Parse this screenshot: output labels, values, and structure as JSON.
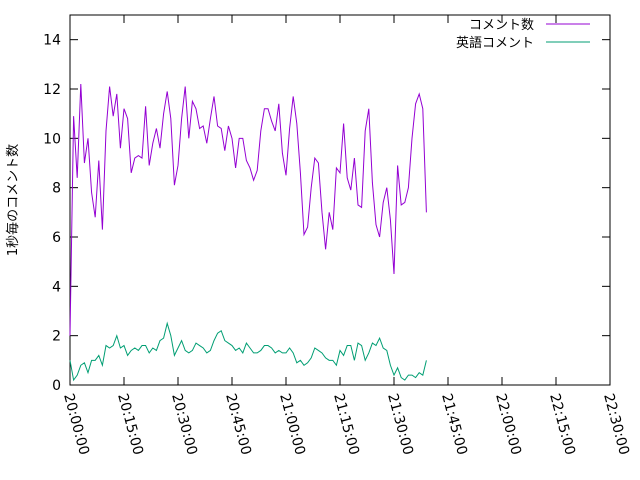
{
  "chart_data": {
    "type": "line",
    "title": "",
    "xlabel": "",
    "ylabel": "1秒毎のコメント数",
    "xlim": [
      "20:00:00",
      "22:30:00"
    ],
    "ylim": [
      0,
      15
    ],
    "grid": false,
    "legend_position": "top-right",
    "x_ticks": [
      "20:00:00",
      "20:15:00",
      "20:30:00",
      "20:45:00",
      "21:00:00",
      "21:15:00",
      "21:30:00",
      "21:45:00",
      "22:00:00",
      "22:15:00",
      "22:30:00"
    ],
    "y_ticks": [
      "0",
      "2",
      "4",
      "6",
      "8",
      "10",
      "12",
      "14"
    ],
    "x_start": "20:00:00",
    "x_step_seconds": 60,
    "series": [
      {
        "name": "コメント数",
        "color": "#9400d3",
        "values": [
          2.0,
          10.9,
          8.4,
          12.2,
          9.0,
          10.0,
          7.8,
          6.8,
          9.1,
          6.3,
          10.3,
          12.1,
          10.9,
          11.8,
          9.6,
          11.2,
          10.8,
          8.6,
          9.2,
          9.3,
          9.2,
          11.3,
          8.9,
          9.8,
          10.4,
          9.6,
          11.0,
          11.9,
          10.8,
          8.1,
          8.9,
          10.8,
          12.1,
          10.0,
          11.5,
          11.2,
          10.4,
          10.5,
          9.8,
          10.8,
          11.7,
          10.5,
          10.4,
          9.5,
          10.5,
          10.0,
          8.8,
          10.0,
          10.0,
          9.1,
          8.8,
          8.3,
          8.7,
          10.3,
          11.2,
          11.2,
          10.7,
          10.3,
          11.4,
          9.4,
          8.5,
          10.4,
          11.7,
          10.6,
          8.6,
          6.1,
          6.4,
          8.0,
          9.2,
          9.0,
          7.0,
          5.5,
          7.0,
          6.3,
          8.8,
          8.6,
          10.6,
          8.4,
          7.9,
          9.2,
          7.3,
          7.2,
          10.3,
          11.2,
          8.2,
          6.5,
          6.0,
          7.4,
          8.0,
          6.7,
          4.5,
          8.9,
          7.3,
          7.4,
          8.0,
          10.0,
          11.4,
          11.8,
          11.2,
          7.0
        ]
      },
      {
        "name": "英語コメント",
        "color": "#009e73",
        "values": [
          1.0,
          0.2,
          0.4,
          0.8,
          0.9,
          0.5,
          1.0,
          1.0,
          1.2,
          0.8,
          1.6,
          1.5,
          1.6,
          2.0,
          1.5,
          1.6,
          1.2,
          1.4,
          1.5,
          1.4,
          1.6,
          1.6,
          1.3,
          1.5,
          1.4,
          1.8,
          1.9,
          2.5,
          2.0,
          1.2,
          1.5,
          1.8,
          1.4,
          1.3,
          1.4,
          1.7,
          1.6,
          1.5,
          1.3,
          1.4,
          1.8,
          2.1,
          2.2,
          1.8,
          1.7,
          1.6,
          1.4,
          1.5,
          1.3,
          1.7,
          1.5,
          1.3,
          1.3,
          1.4,
          1.6,
          1.6,
          1.5,
          1.3,
          1.4,
          1.3,
          1.3,
          1.5,
          1.3,
          0.9,
          1.0,
          0.8,
          0.9,
          1.1,
          1.5,
          1.4,
          1.3,
          1.1,
          1.0,
          1.0,
          0.8,
          1.4,
          1.2,
          1.6,
          1.6,
          1.0,
          1.7,
          1.6,
          1.0,
          1.3,
          1.7,
          1.6,
          1.9,
          1.5,
          1.4,
          0.8,
          0.4,
          0.7,
          0.3,
          0.2,
          0.4,
          0.4,
          0.3,
          0.5,
          0.4,
          1.0
        ]
      }
    ]
  }
}
